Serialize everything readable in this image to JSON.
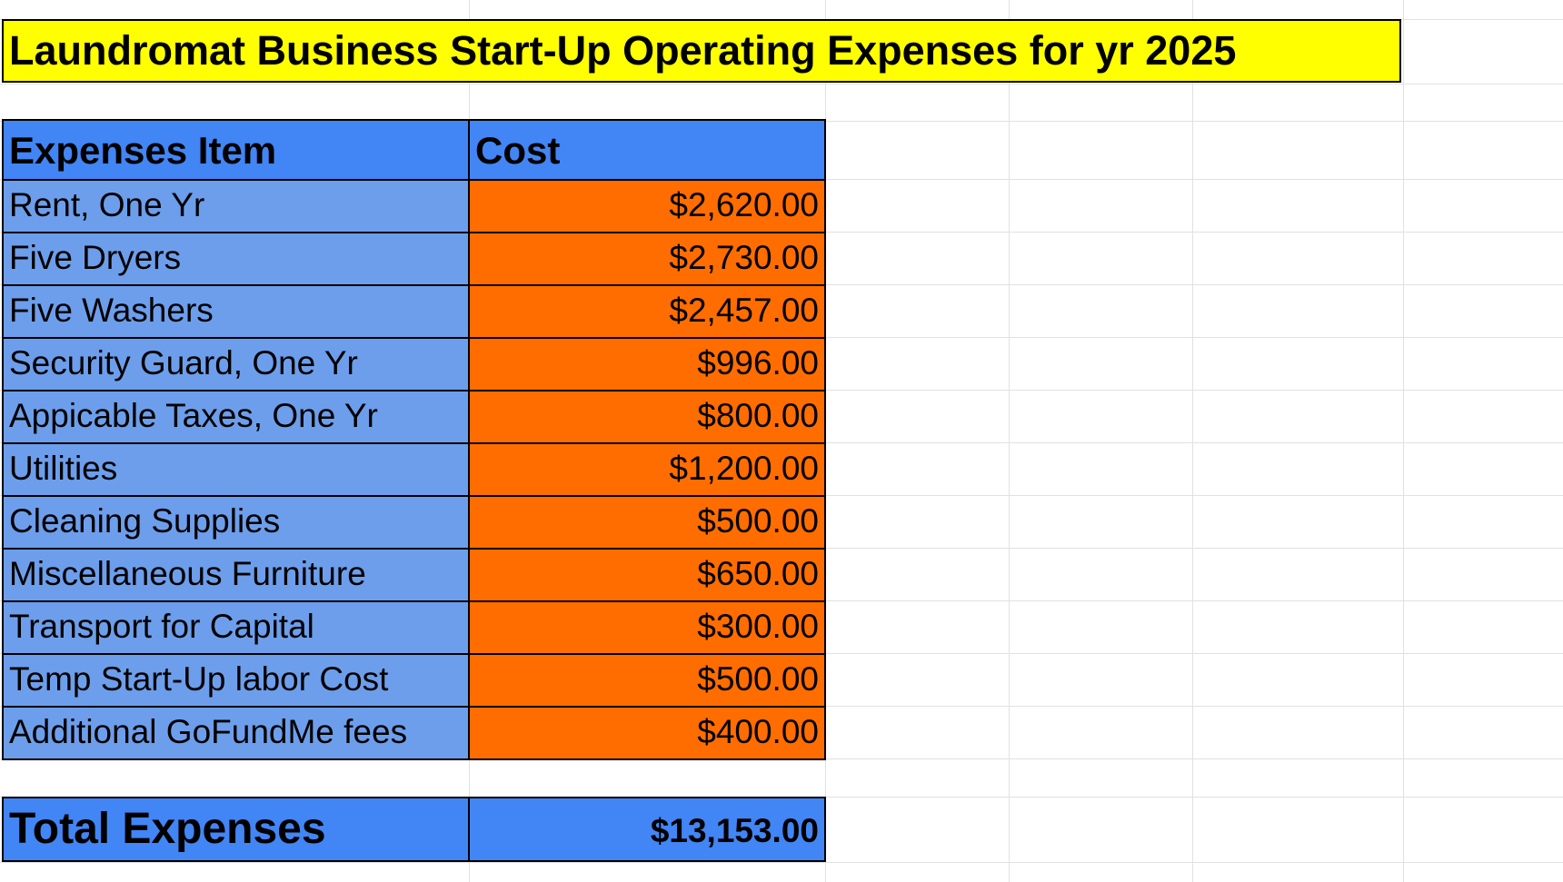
{
  "title": "Laundromat Business Start-Up Operating Expenses for yr 2025",
  "header": {
    "item": "Expenses Item",
    "cost": "Cost"
  },
  "rows": [
    {
      "item": "Rent, One Yr",
      "cost": "$2,620.00"
    },
    {
      "item": "Five Dryers",
      "cost": "$2,730.00"
    },
    {
      "item": "Five Washers",
      "cost": "$2,457.00"
    },
    {
      "item": "Security Guard, One Yr",
      "cost": "$996.00"
    },
    {
      "item": "Appicable Taxes, One Yr",
      "cost": "$800.00"
    },
    {
      "item": "Utilities",
      "cost": "$1,200.00"
    },
    {
      "item": "Cleaning Supplies",
      "cost": "$500.00"
    },
    {
      "item": "Miscellaneous Furniture",
      "cost": "$650.00"
    },
    {
      "item": "Transport for Capital",
      "cost": "$300.00"
    },
    {
      "item": "Temp Start-Up labor Cost",
      "cost": "$500.00"
    },
    {
      "item": "Additional GoFundMe fees",
      "cost": "$400.00"
    }
  ],
  "total": {
    "label": "Total Expenses",
    "value": "$13,153.00"
  },
  "colors": {
    "title_bg": "#ffff00",
    "header_bg": "#4285f4",
    "item_bg": "#6d9eeb",
    "cost_bg": "#ff6d01",
    "gridline": "#e1e1e1"
  }
}
